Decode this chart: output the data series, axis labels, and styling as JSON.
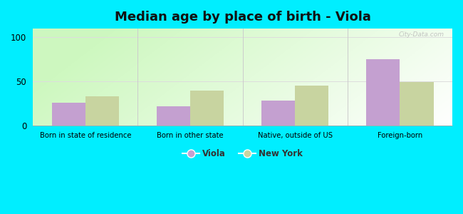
{
  "title": "Median age by place of birth - Viola",
  "categories": [
    "Born in state of residence",
    "Born in other state",
    "Native, outside of US",
    "Foreign-born"
  ],
  "viola_values": [
    26,
    22,
    28,
    75
  ],
  "newyork_values": [
    33,
    40,
    45,
    49
  ],
  "viola_color": "#c4a0d0",
  "newyork_color": "#c8d4a0",
  "background_color": "#00eeff",
  "ylim": [
    0,
    110
  ],
  "yticks": [
    0,
    50,
    100
  ],
  "grid_color": "#dddddd",
  "title_fontsize": 13,
  "legend_labels": [
    "Viola",
    "New York"
  ],
  "bar_width": 0.32,
  "watermark": "City-Data.com",
  "separator_color": "#cccccc",
  "plot_bg_left": "#c8e8c0",
  "plot_bg_right": "#f0f8f0"
}
